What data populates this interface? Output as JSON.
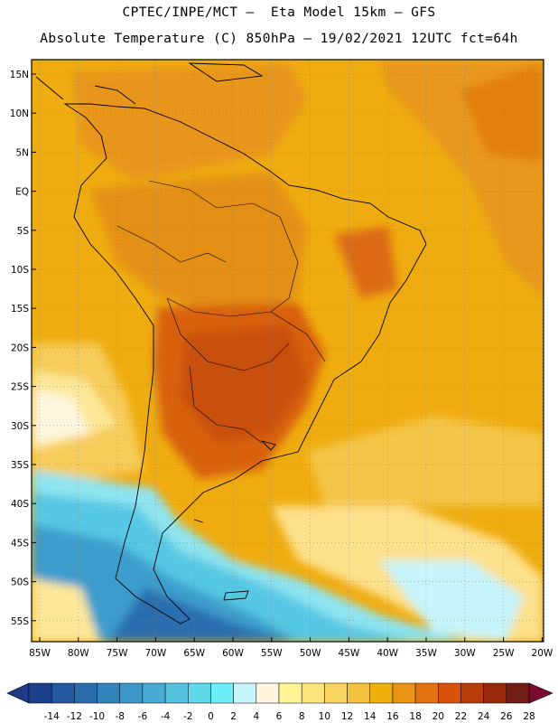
{
  "header": {
    "line1": "CPTEC/INPE/MCT –  Eta Model 15km – GFS",
    "line2": "Absolute Temperature (C) 850hPa – 19/02/2021 12UTC fct=64h"
  },
  "map": {
    "lat_labels": [
      "15N",
      "10N",
      "5N",
      "EQ",
      "5S",
      "10S",
      "15S",
      "20S",
      "25S",
      "30S",
      "35S",
      "40S",
      "45S",
      "50S",
      "55S"
    ],
    "lon_labels": [
      "85W",
      "80W",
      "75W",
      "70W",
      "65W",
      "60W",
      "55W",
      "50W",
      "45W",
      "40W",
      "35W",
      "30W",
      "25W",
      "20W"
    ]
  },
  "colorbar": {
    "labels": [
      "-14",
      "-12",
      "-10",
      "-8",
      "-6",
      "-4",
      "-2",
      "0",
      "2",
      "4",
      "6",
      "8",
      "10",
      "12",
      "14",
      "16",
      "18",
      "20",
      "22",
      "24",
      "26",
      "28"
    ],
    "colors": [
      "#1c3f8c",
      "#2459a0",
      "#2b6eae",
      "#3484bc",
      "#3d97c9",
      "#49abd4",
      "#55c3df",
      "#5fd8ea",
      "#6deff7",
      "#c8f5fb",
      "#fff6df",
      "#fff594",
      "#fbe479",
      "#f8d460",
      "#f2c13e",
      "#eeaf0b",
      "#ea9415",
      "#e2720f",
      "#d8520c",
      "#b93c0c",
      "#98290c",
      "#711d16"
    ],
    "low_color": "#1e3a86",
    "high_color": "#7a0b2e"
  }
}
